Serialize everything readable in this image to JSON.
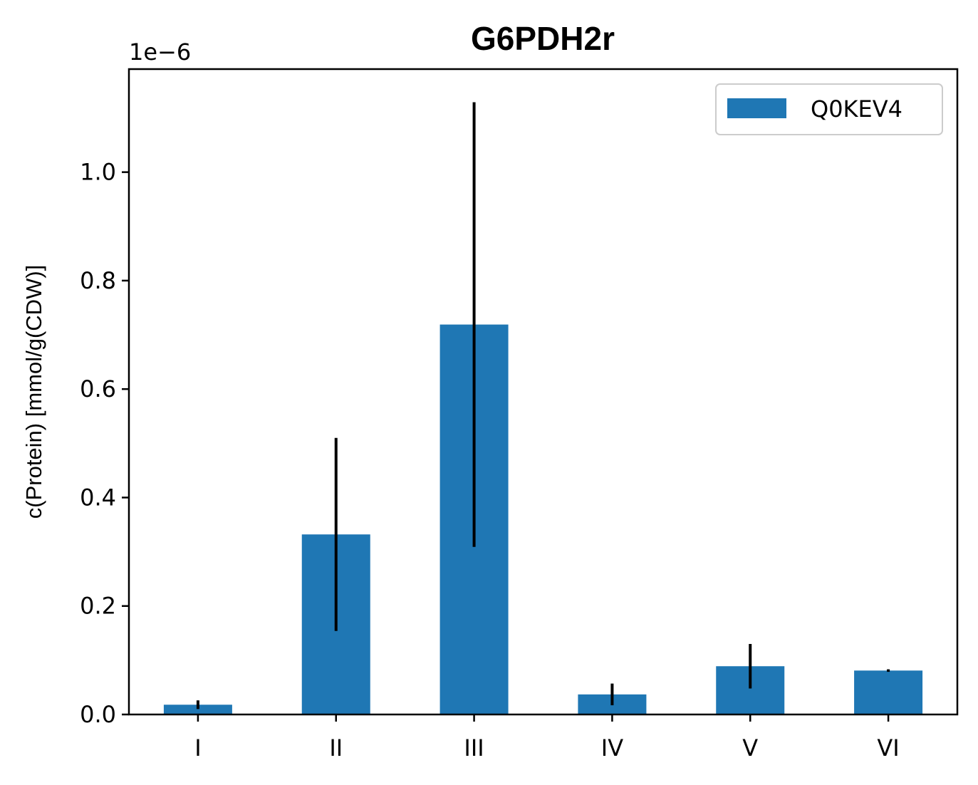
{
  "chart_data": {
    "type": "bar",
    "title": "G6PDH2r",
    "xlabel": "",
    "ylabel": "c(Protein) [mmol/g(CDW)]",
    "y_offset_text": "1e−6",
    "y_scale": 1e-06,
    "ylim": [
      0,
      1.19
    ],
    "yticks": [
      0.0,
      0.2,
      0.4,
      0.6,
      0.8,
      1.0
    ],
    "ytick_labels": [
      "0.0",
      "0.2",
      "0.4",
      "0.6",
      "0.8",
      "1.0"
    ],
    "categories": [
      "I",
      "II",
      "III",
      "IV",
      "V",
      "VI"
    ],
    "series": [
      {
        "name": "Q0KEV4",
        "color": "#1f77b4",
        "values": [
          0.018,
          0.332,
          0.719,
          0.037,
          0.089,
          0.081
        ],
        "error": [
          0.008,
          0.178,
          0.41,
          0.02,
          0.041,
          0.001
        ]
      }
    ],
    "legend_position": "upper right",
    "grid": false
  }
}
